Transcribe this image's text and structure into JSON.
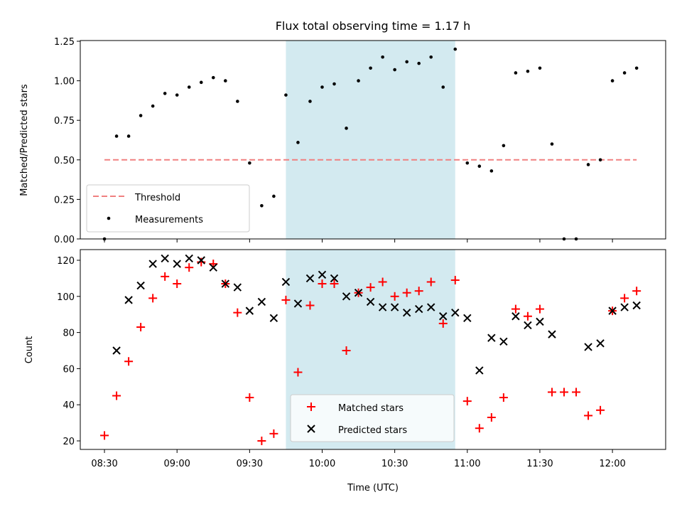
{
  "title": "Flux total observing time = 1.17 h",
  "colors": {
    "shade": "#d3eaf0",
    "threshold": "#f08080",
    "matched": "#ff0000",
    "predicted": "#000000",
    "measurement": "#000000"
  },
  "chart_data": [
    {
      "type": "scatter",
      "ylabel": "Matched/Predicted stars",
      "ylim": [
        0,
        1.25
      ],
      "yticks": [
        0.0,
        0.25,
        0.5,
        0.75,
        1.0,
        1.25
      ],
      "ytick_labels": [
        "0.00",
        "0.25",
        "0.50",
        "0.75",
        "1.00",
        "1.25"
      ],
      "shaded_interval": [
        "09:45",
        "10:55"
      ],
      "threshold": {
        "name": "Threshold",
        "value": 0.5,
        "x_range": [
          "08:30",
          "12:10"
        ]
      },
      "legend": {
        "placement": "lower-left",
        "entries": [
          "Threshold",
          "Measurements"
        ]
      },
      "series": [
        {
          "name": "Measurements",
          "marker": "dot",
          "x": [
            "08:30",
            "08:35",
            "08:40",
            "08:45",
            "08:50",
            "08:55",
            "09:00",
            "09:05",
            "09:10",
            "09:15",
            "09:20",
            "09:25",
            "09:30",
            "09:35",
            "09:40",
            "09:45",
            "09:50",
            "09:55",
            "10:00",
            "10:05",
            "10:10",
            "10:15",
            "10:20",
            "10:25",
            "10:30",
            "10:35",
            "10:40",
            "10:45",
            "10:50",
            "10:55",
            "11:00",
            "11:05",
            "11:10",
            "11:15",
            "11:20",
            "11:25",
            "11:30",
            "11:35",
            "11:40",
            "11:45",
            "11:50",
            "11:55",
            "12:00",
            "12:05",
            "12:10"
          ],
          "y": [
            0.0,
            0.65,
            0.65,
            0.78,
            0.84,
            0.92,
            0.91,
            0.96,
            0.99,
            1.02,
            1.0,
            0.87,
            0.48,
            0.21,
            0.27,
            0.91,
            0.61,
            0.87,
            0.96,
            0.98,
            0.7,
            1.0,
            1.08,
            1.15,
            1.07,
            1.12,
            1.11,
            1.15,
            0.96,
            1.2,
            0.48,
            0.46,
            0.43,
            0.59,
            1.05,
            1.06,
            1.08,
            0.6,
            0.0,
            0.0,
            0.47,
            0.5,
            1.0,
            1.05,
            1.08
          ]
        }
      ]
    },
    {
      "type": "scatter",
      "xlabel": "Time (UTC)",
      "ylabel": "Count",
      "ylim": [
        15,
        127
      ],
      "yticks": [
        20,
        40,
        60,
        80,
        100,
        120
      ],
      "ytick_labels": [
        "20",
        "40",
        "60",
        "80",
        "100",
        "120"
      ],
      "xlim": [
        "08:20",
        "12:22"
      ],
      "xticks": [
        "08:30",
        "09:00",
        "09:30",
        "10:00",
        "10:30",
        "11:00",
        "11:30",
        "12:00"
      ],
      "shaded_interval": [
        "09:45",
        "10:55"
      ],
      "legend": {
        "placement": "lower-center",
        "entries": [
          "Matched stars",
          "Predicted stars"
        ]
      },
      "x": [
        "08:30",
        "08:35",
        "08:40",
        "08:45",
        "08:50",
        "08:55",
        "09:00",
        "09:05",
        "09:10",
        "09:15",
        "09:20",
        "09:25",
        "09:30",
        "09:35",
        "09:40",
        "09:45",
        "09:50",
        "09:55",
        "10:00",
        "10:05",
        "10:10",
        "10:15",
        "10:20",
        "10:25",
        "10:30",
        "10:35",
        "10:40",
        "10:45",
        "10:50",
        "10:55",
        "11:00",
        "11:05",
        "11:10",
        "11:15",
        "11:20",
        "11:25",
        "11:30",
        "11:35",
        "11:40",
        "11:45",
        "11:50",
        "11:55",
        "12:00",
        "12:05",
        "12:10"
      ],
      "series": [
        {
          "name": "Matched stars",
          "marker": "plus",
          "values": [
            23,
            45,
            64,
            83,
            99,
            111,
            107,
            116,
            119,
            118,
            107,
            91,
            44,
            20,
            24,
            98,
            58,
            95,
            107,
            107,
            70,
            102,
            105,
            108,
            100,
            102,
            103,
            108,
            85,
            109,
            42,
            27,
            33,
            44,
            93,
            89,
            93,
            47,
            47,
            47,
            34,
            37,
            92,
            99,
            103
          ]
        },
        {
          "name": "Predicted stars",
          "marker": "x",
          "values": [
            null,
            70,
            98,
            106,
            118,
            121,
            118,
            121,
            120,
            116,
            107,
            105,
            92,
            97,
            88,
            108,
            96,
            110,
            112,
            110,
            100,
            102,
            97,
            94,
            94,
            91,
            93,
            94,
            89,
            91,
            88,
            59,
            77,
            75,
            89,
            84,
            86,
            79,
            null,
            null,
            72,
            74,
            92,
            94,
            95
          ]
        }
      ]
    }
  ]
}
